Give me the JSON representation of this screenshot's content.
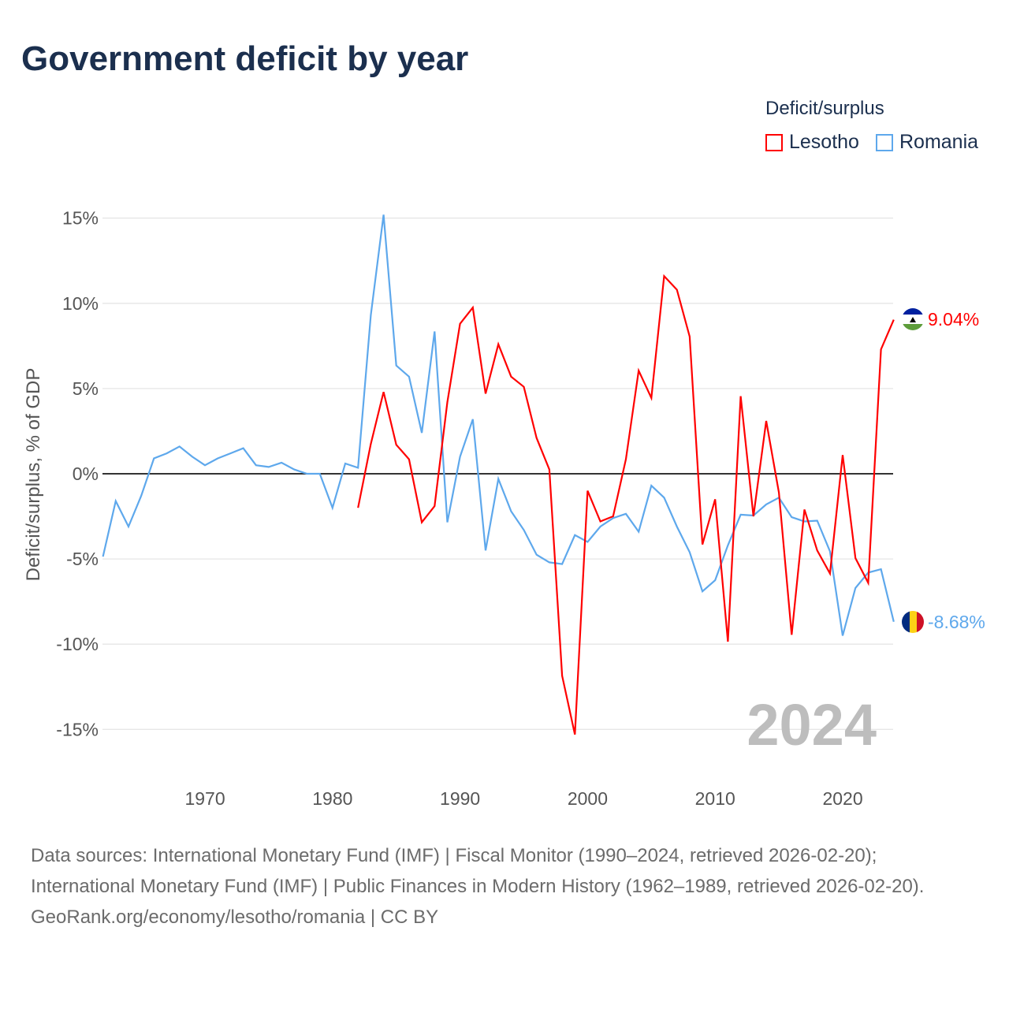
{
  "title": "Government deficit by year",
  "legend": {
    "title": "Deficit/surplus",
    "items": [
      {
        "label": "Lesotho",
        "color": "#ff0000"
      },
      {
        "label": "Romania",
        "color": "#5ea8ec"
      }
    ]
  },
  "chart_data": {
    "type": "line",
    "title": "Government deficit by year",
    "ylabel": "Deficit/surplus, % of GDP",
    "xlabel": "",
    "xlim": [
      1962,
      2024
    ],
    "ylim": [
      -17,
      16
    ],
    "x_ticks": [
      1970,
      1980,
      1990,
      2000,
      2010,
      2020
    ],
    "y_ticks": [
      15,
      10,
      5,
      0,
      -5,
      -10,
      -15
    ],
    "y_tick_labels": [
      "15%",
      "10%",
      "5%",
      "0%",
      "-5%",
      "-10%",
      "-15%"
    ],
    "year_watermark": "2024",
    "series": [
      {
        "name": "Lesotho",
        "color": "#ff0000",
        "start_year": 1982,
        "end_label": "9.04%",
        "values": [
          -2.0,
          1.75,
          4.8,
          1.7,
          0.85,
          -2.85,
          -1.9,
          4.2,
          8.8,
          9.75,
          4.7,
          7.6,
          5.7,
          5.1,
          2.1,
          0.25,
          -11.85,
          -15.3,
          -1.0,
          -2.8,
          -2.5,
          0.85,
          6.05,
          4.45,
          11.6,
          10.8,
          8.05,
          -4.15,
          -1.5,
          -9.85,
          4.55,
          -2.5,
          3.1,
          -1.1,
          -9.45,
          -2.1,
          -4.5,
          -5.85,
          1.1,
          -4.95,
          -6.4,
          7.3,
          9.04
        ]
      },
      {
        "name": "Romania",
        "color": "#5ea8ec",
        "start_year": 1962,
        "end_label": "-8.68%",
        "values": [
          -4.86,
          -1.6,
          -3.1,
          -1.3,
          0.9,
          1.2,
          1.6,
          1.0,
          0.5,
          0.9,
          1.2,
          1.5,
          0.5,
          0.4,
          0.65,
          0.25,
          0,
          0,
          -2.0,
          0.6,
          0.35,
          9.3,
          15.2,
          6.35,
          5.7,
          2.4,
          8.35,
          -2.85,
          1.0,
          3.2,
          -4.5,
          -0.3,
          -2.2,
          -3.3,
          -4.75,
          -5.2,
          -5.3,
          -3.6,
          -4.0,
          -3.1,
          -2.6,
          -2.35,
          -3.4,
          -0.7,
          -1.4,
          -3.1,
          -4.6,
          -6.9,
          -6.25,
          -4.2,
          -2.4,
          -2.45,
          -1.8,
          -1.4,
          -2.55,
          -2.8,
          -2.75,
          -4.55,
          -9.5,
          -6.7,
          -5.8,
          -5.6,
          -8.68
        ]
      }
    ]
  },
  "footer": {
    "sources": "Data sources: International Monetary Fund (IMF) | Fiscal Monitor (1990–2024, retrieved 2026-02-20); International Monetary Fund (IMF) | Public Finances in Modern History (1962–1989, retrieved 2026-02-20).",
    "credit": "GeoRank.org/economy/lesotho/romania | CC BY"
  }
}
